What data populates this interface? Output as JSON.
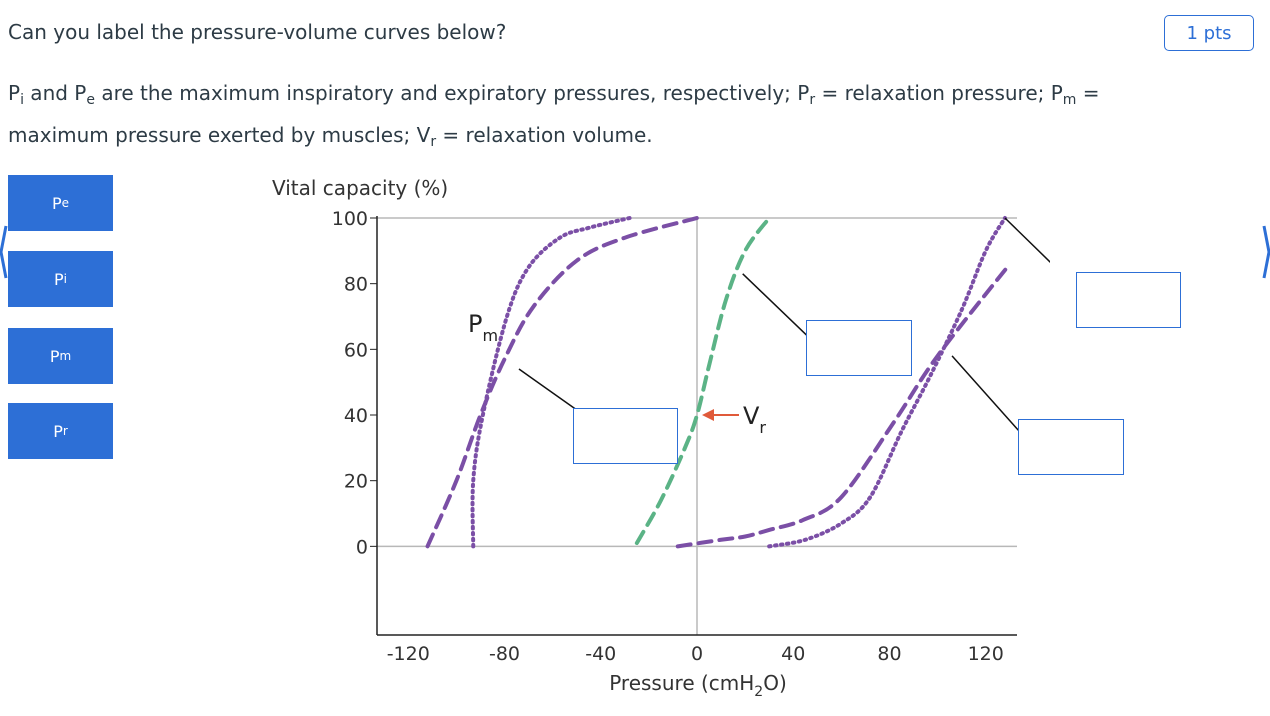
{
  "question": {
    "text": "Can you label the pressure-volume curves below?",
    "points": "1 pts"
  },
  "description": {
    "pi_sym": "P",
    "pi_sub": "i",
    "and": " and ",
    "pe_sym": "P",
    "pe_sub": "e",
    "text1": " are the maximum inspiratory and expiratory pressures, respectively; ",
    "pr_sym": "P",
    "pr_sub": "r",
    "text2": " = relaxation pressure; ",
    "pm_sym": "P",
    "pm_sub": "m",
    "text3": " = maximum pressure exerted by muscles; ",
    "vr_sym": "V",
    "vr_sub": "r",
    "text4": " = relaxation volume."
  },
  "answer_tiles": [
    {
      "sym": "P",
      "sub": "e"
    },
    {
      "sym": "P",
      "sub": "i"
    },
    {
      "sym": "P",
      "sub": "m"
    },
    {
      "sym": "P",
      "sub": "r"
    }
  ],
  "chart_data": {
    "type": "line",
    "ylabel": "Vital capacity (%)",
    "xlabel_main": "Pressure (cmH",
    "xlabel_sub": "2",
    "xlabel_end": "O)",
    "x_ticks": [
      -120,
      -80,
      -40,
      0,
      40,
      80,
      120
    ],
    "y_ticks": [
      0,
      20,
      40,
      60,
      80,
      100
    ],
    "xlim": [
      -133,
      133
    ],
    "ylim": [
      -27,
      100
    ],
    "annotations": {
      "pm_sym": "P",
      "pm_sub": "m",
      "vr_sym": "V",
      "vr_sub": "r",
      "vr_point": [
        0,
        40
      ]
    },
    "series": [
      {
        "style": "dashed",
        "color": "#7b4fa6",
        "points": [
          [
            -112,
            0
          ],
          [
            -100,
            20
          ],
          [
            -90,
            40
          ],
          [
            -80,
            57
          ],
          [
            -68,
            73
          ],
          [
            -50,
            87
          ],
          [
            -30,
            94
          ],
          [
            0,
            100
          ]
        ]
      },
      {
        "style": "dotted",
        "color": "#7b4fa6",
        "points": [
          [
            -93,
            0
          ],
          [
            -93,
            20
          ],
          [
            -89,
            40
          ],
          [
            -79,
            70
          ],
          [
            -70,
            85
          ],
          [
            -57,
            94
          ],
          [
            -45,
            97
          ],
          [
            -28,
            100
          ]
        ]
      },
      {
        "style": "dashed",
        "color": "#5bb386",
        "points": [
          [
            -25,
            1
          ],
          [
            -15,
            14
          ],
          [
            -5,
            30
          ],
          [
            0,
            40
          ],
          [
            5,
            55
          ],
          [
            12,
            75
          ],
          [
            20,
            90
          ],
          [
            30,
            100
          ]
        ]
      },
      {
        "style": "dashed",
        "color": "#7b4fa6",
        "points": [
          [
            -8,
            0
          ],
          [
            10,
            2
          ],
          [
            20,
            3
          ],
          [
            30,
            5
          ],
          [
            44,
            8
          ],
          [
            60,
            15
          ],
          [
            82,
            38
          ],
          [
            100,
            58
          ],
          [
            130,
            86
          ]
        ]
      },
      {
        "style": "dotted",
        "color": "#7b4fa6",
        "points": [
          [
            30,
            0
          ],
          [
            45,
            2
          ],
          [
            60,
            7
          ],
          [
            72,
            15
          ],
          [
            85,
            35
          ],
          [
            97,
            52
          ],
          [
            110,
            72
          ],
          [
            120,
            90
          ],
          [
            128,
            100
          ]
        ]
      }
    ],
    "leader_lines": [
      [
        [
          -74,
          54
        ],
        [
          -47,
          40
        ]
      ],
      [
        [
          19,
          83
        ],
        [
          46,
          64
        ]
      ],
      [
        [
          106,
          58
        ],
        [
          134,
          35
        ]
      ],
      [
        [
          128,
          100
        ],
        [
          156,
          80
        ]
      ]
    ]
  }
}
